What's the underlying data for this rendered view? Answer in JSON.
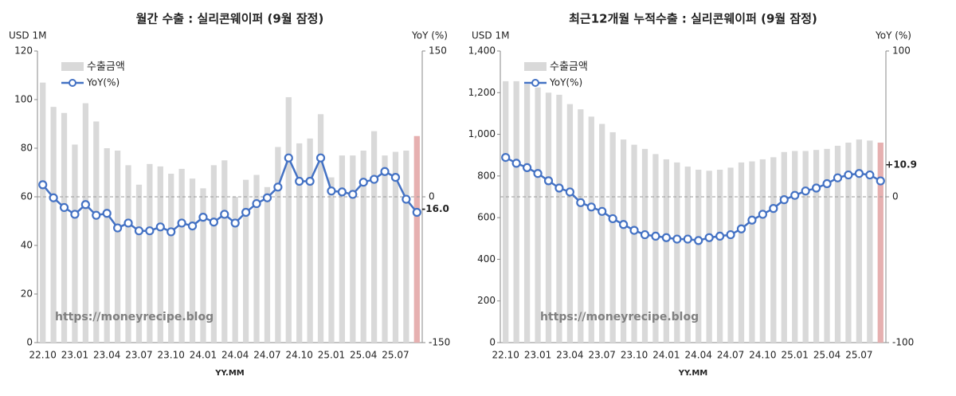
{
  "chart_data": [
    {
      "type": "combo",
      "title": "월간 수출 : 실리콘웨이퍼 (9월 잠정)",
      "y_label": "USD 1M",
      "y2_label": "YoY (%)",
      "x_label": "YY.MM",
      "watermark": "https://moneyrecipe.blog",
      "annotation": "-16.0",
      "annotation_color": "#ff0000",
      "highlight_color": "#e6b0b0",
      "categories": [
        "22.10",
        null,
        null,
        "23.01",
        null,
        null,
        "23.04",
        null,
        null,
        "23.07",
        null,
        null,
        "23.10",
        null,
        null,
        "24.01",
        null,
        null,
        "24.04",
        null,
        null,
        "24.07",
        null,
        null,
        "24.10",
        null,
        null,
        "25.01",
        null,
        null,
        "25.04",
        null,
        null,
        "25.07",
        null,
        null
      ],
      "series": [
        {
          "name": "수출금액",
          "color": "#d9d9d9",
          "values": [
            107,
            97,
            94.5,
            81.5,
            98.5,
            91,
            80,
            79,
            73,
            65,
            73.5,
            72.5,
            69.5,
            71.5,
            67.5,
            63.5,
            73,
            75,
            60,
            67,
            69,
            64,
            80.5,
            101,
            82,
            84,
            94,
            68,
            77,
            77,
            79,
            87,
            77,
            78.5,
            79,
            85
          ]
        },
        {
          "name": "YoY(%)",
          "color": "#4472c4",
          "axis": "y2",
          "values": [
            12.4,
            -1,
            -11,
            -18,
            -8,
            -19,
            -17,
            -32,
            -27,
            -35,
            -35,
            -31,
            -36,
            -27,
            -30,
            -21,
            -26,
            -18,
            -27,
            -16,
            -7,
            -1,
            10,
            40,
            16,
            16,
            40,
            6,
            5,
            2.5,
            15,
            18,
            26,
            20,
            -2.5,
            -16
          ]
        }
      ],
      "ylim": [
        0,
        120
      ],
      "yticks": [
        0,
        20,
        40,
        60,
        80,
        100,
        120
      ],
      "y2lim": [
        -150,
        150
      ],
      "y2ticks": [
        -150,
        0,
        150
      ]
    },
    {
      "type": "combo",
      "title": "최근12개월 누적수출 : 실리콘웨이퍼 (9월 잠정)",
      "y_label": "USD 1M",
      "y2_label": "YoY (%)",
      "x_label": "YY.MM",
      "watermark": "https://moneyrecipe.blog",
      "annotation": "+10.9",
      "annotation_color": "#ff0000",
      "highlight_color": "#e6b0b0",
      "categories": [
        "22.10",
        null,
        null,
        "23.01",
        null,
        null,
        "23.04",
        null,
        null,
        "23.07",
        null,
        null,
        "23.10",
        null,
        null,
        "24.01",
        null,
        null,
        "24.04",
        null,
        null,
        "24.07",
        null,
        null,
        "24.10",
        null,
        null,
        "25.01",
        null,
        null,
        "25.04",
        null,
        null,
        "25.07",
        null,
        null
      ],
      "series": [
        {
          "name": "수출금액",
          "color": "#d9d9d9",
          "values": [
            1255,
            1255,
            1240,
            1225,
            1200,
            1190,
            1145,
            1120,
            1085,
            1050,
            1010,
            975,
            950,
            930,
            905,
            880,
            865,
            845,
            830,
            825,
            830,
            840,
            865,
            870,
            880,
            890,
            915,
            920,
            920,
            925,
            930,
            945,
            960,
            975,
            970,
            960
          ]
        },
        {
          "name": "YoY(%)",
          "color": "#4472c4",
          "axis": "y2",
          "values": [
            27,
            23,
            20,
            16,
            11,
            6,
            3.3,
            -4,
            -7,
            -10,
            -15,
            -19,
            -23,
            -26,
            -27,
            -28,
            -29,
            -29,
            -30,
            -28,
            -27,
            -26,
            -22,
            -16,
            -12,
            -8,
            -2,
            1,
            4,
            6,
            9,
            13,
            15,
            16,
            15,
            10.9
          ]
        }
      ],
      "ylim": [
        0,
        1400
      ],
      "yticks": [
        0,
        200,
        400,
        600,
        800,
        {
          "value": 1000,
          "label": "1,000"
        },
        {
          "value": 1200,
          "label": "1,200"
        },
        {
          "value": 1400,
          "label": "1,400"
        }
      ],
      "y2lim": [
        -100,
        100
      ],
      "y2ticks": [
        -100,
        0,
        100
      ]
    }
  ]
}
